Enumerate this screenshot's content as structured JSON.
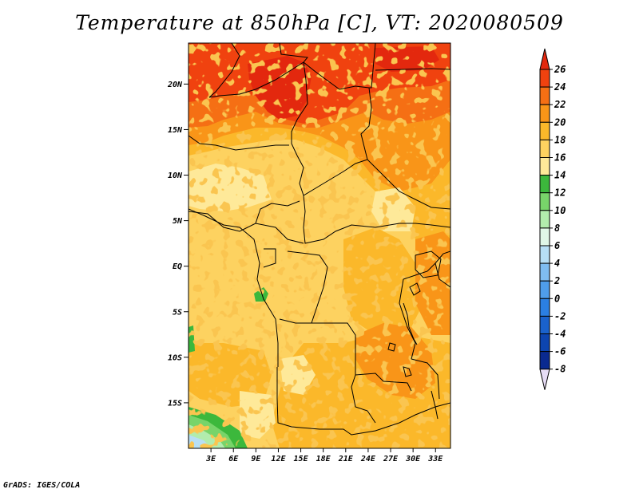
{
  "title": "Temperature at 850hPa [C], VT: 2020080509",
  "credit": "GrADS: IGES/COLA",
  "map": {
    "type": "filled-contour-map",
    "variable": "Temperature at 850hPa",
    "units": "C",
    "lon_range": [
      0,
      35
    ],
    "lat_range": [
      -20,
      24.5
    ],
    "lat_ticks": [
      {
        "value": 20,
        "label": "20N"
      },
      {
        "value": 15,
        "label": "15N"
      },
      {
        "value": 10,
        "label": "10N"
      },
      {
        "value": 5,
        "label": "5N"
      },
      {
        "value": 0,
        "label": "EQ"
      },
      {
        "value": -5,
        "label": "5S"
      },
      {
        "value": -10,
        "label": "10S"
      },
      {
        "value": -15,
        "label": "15S"
      }
    ],
    "lon_ticks": [
      {
        "value": 3,
        "label": "3E"
      },
      {
        "value": 6,
        "label": "6E"
      },
      {
        "value": 9,
        "label": "9E"
      },
      {
        "value": 12,
        "label": "12E"
      },
      {
        "value": 15,
        "label": "15E"
      },
      {
        "value": 18,
        "label": "18E"
      },
      {
        "value": 21,
        "label": "21E"
      },
      {
        "value": 24,
        "label": "24E"
      },
      {
        "value": 27,
        "label": "27E"
      },
      {
        "value": 30,
        "label": "30E"
      },
      {
        "value": 33,
        "label": "33E"
      }
    ]
  },
  "colorbar": {
    "levels": [
      "26",
      "24",
      "22",
      "20",
      "18",
      "16",
      "14",
      "12",
      "10",
      "8",
      "6",
      "4",
      "2",
      "0",
      "-2",
      "-4",
      "-6",
      "-8"
    ],
    "colors": {
      "above_26": "#e3280e",
      "24_26": "#f0420f",
      "22_24": "#f56f14",
      "20_22": "#f99518",
      "18_20": "#fbb82a",
      "16_18": "#fdd260",
      "14_16": "#fee999",
      "12_14": "#3cb83c",
      "10_12": "#78d46a",
      "8_10": "#b2ecad",
      "6_8": "#e0f7e7",
      "4_6": "#b7dff5",
      "2_4": "#7fbdf1",
      "0_2": "#4f9deb",
      "neg2_0": "#2b7fe2",
      "neg4_neg2": "#1a62cc",
      "neg6_neg4": "#0d45b0",
      "neg8_neg6": "#0a2a90",
      "below_neg8": "#03005c",
      "bottom_triangle": "#e6dcf5"
    }
  }
}
